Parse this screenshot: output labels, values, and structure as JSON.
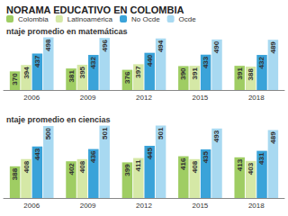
{
  "title": "NORAMA EDUCATIVO EN COLOMBIA",
  "chart_data": [
    {
      "type": "bar",
      "title": "ntaje promedio en matemáticas",
      "categories": [
        "2006",
        "2009",
        "2012",
        "2015",
        "2018"
      ],
      "series": [
        {
          "name": "Colombia",
          "color": "#9fcd63",
          "values": [
            370,
            381,
            376,
            390,
            391
          ]
        },
        {
          "name": "Latinoamérica",
          "color": "#d5e8a6",
          "values": [
            394,
            395,
            397,
            391,
            388
          ]
        },
        {
          "name": "No Ocde",
          "color": "#3aa3d9",
          "values": [
            437,
            432,
            440,
            433,
            432
          ]
        },
        {
          "name": "Ocde",
          "color": "#a8d9f1",
          "values": [
            498,
            496,
            494,
            490,
            489
          ]
        }
      ],
      "ylim": [
        300,
        510
      ],
      "data_labels": true,
      "tick_labels": "x",
      "grid": false,
      "legend": "top"
    },
    {
      "type": "bar",
      "title": "ntaje promedio en ciencias",
      "categories": [
        "2006",
        "2009",
        "2012",
        "2015",
        "2018"
      ],
      "series": [
        {
          "name": "Colombia",
          "color": "#9fcd63",
          "values": [
            388,
            402,
            399,
            416,
            413
          ]
        },
        {
          "name": "Latinoamérica",
          "color": "#d5e8a6",
          "values": [
            408,
            408,
            411,
            408,
            403
          ]
        },
        {
          "name": "No Ocde",
          "color": "#3aa3d9",
          "values": [
            443,
            436,
            445,
            435,
            431
          ]
        },
        {
          "name": "Ocde",
          "color": "#a8d9f1",
          "values": [
            500,
            501,
            501,
            493,
            489
          ]
        }
      ],
      "ylim": [
        300,
        510
      ],
      "data_labels": true,
      "tick_labels": "x",
      "grid": false
    }
  ]
}
